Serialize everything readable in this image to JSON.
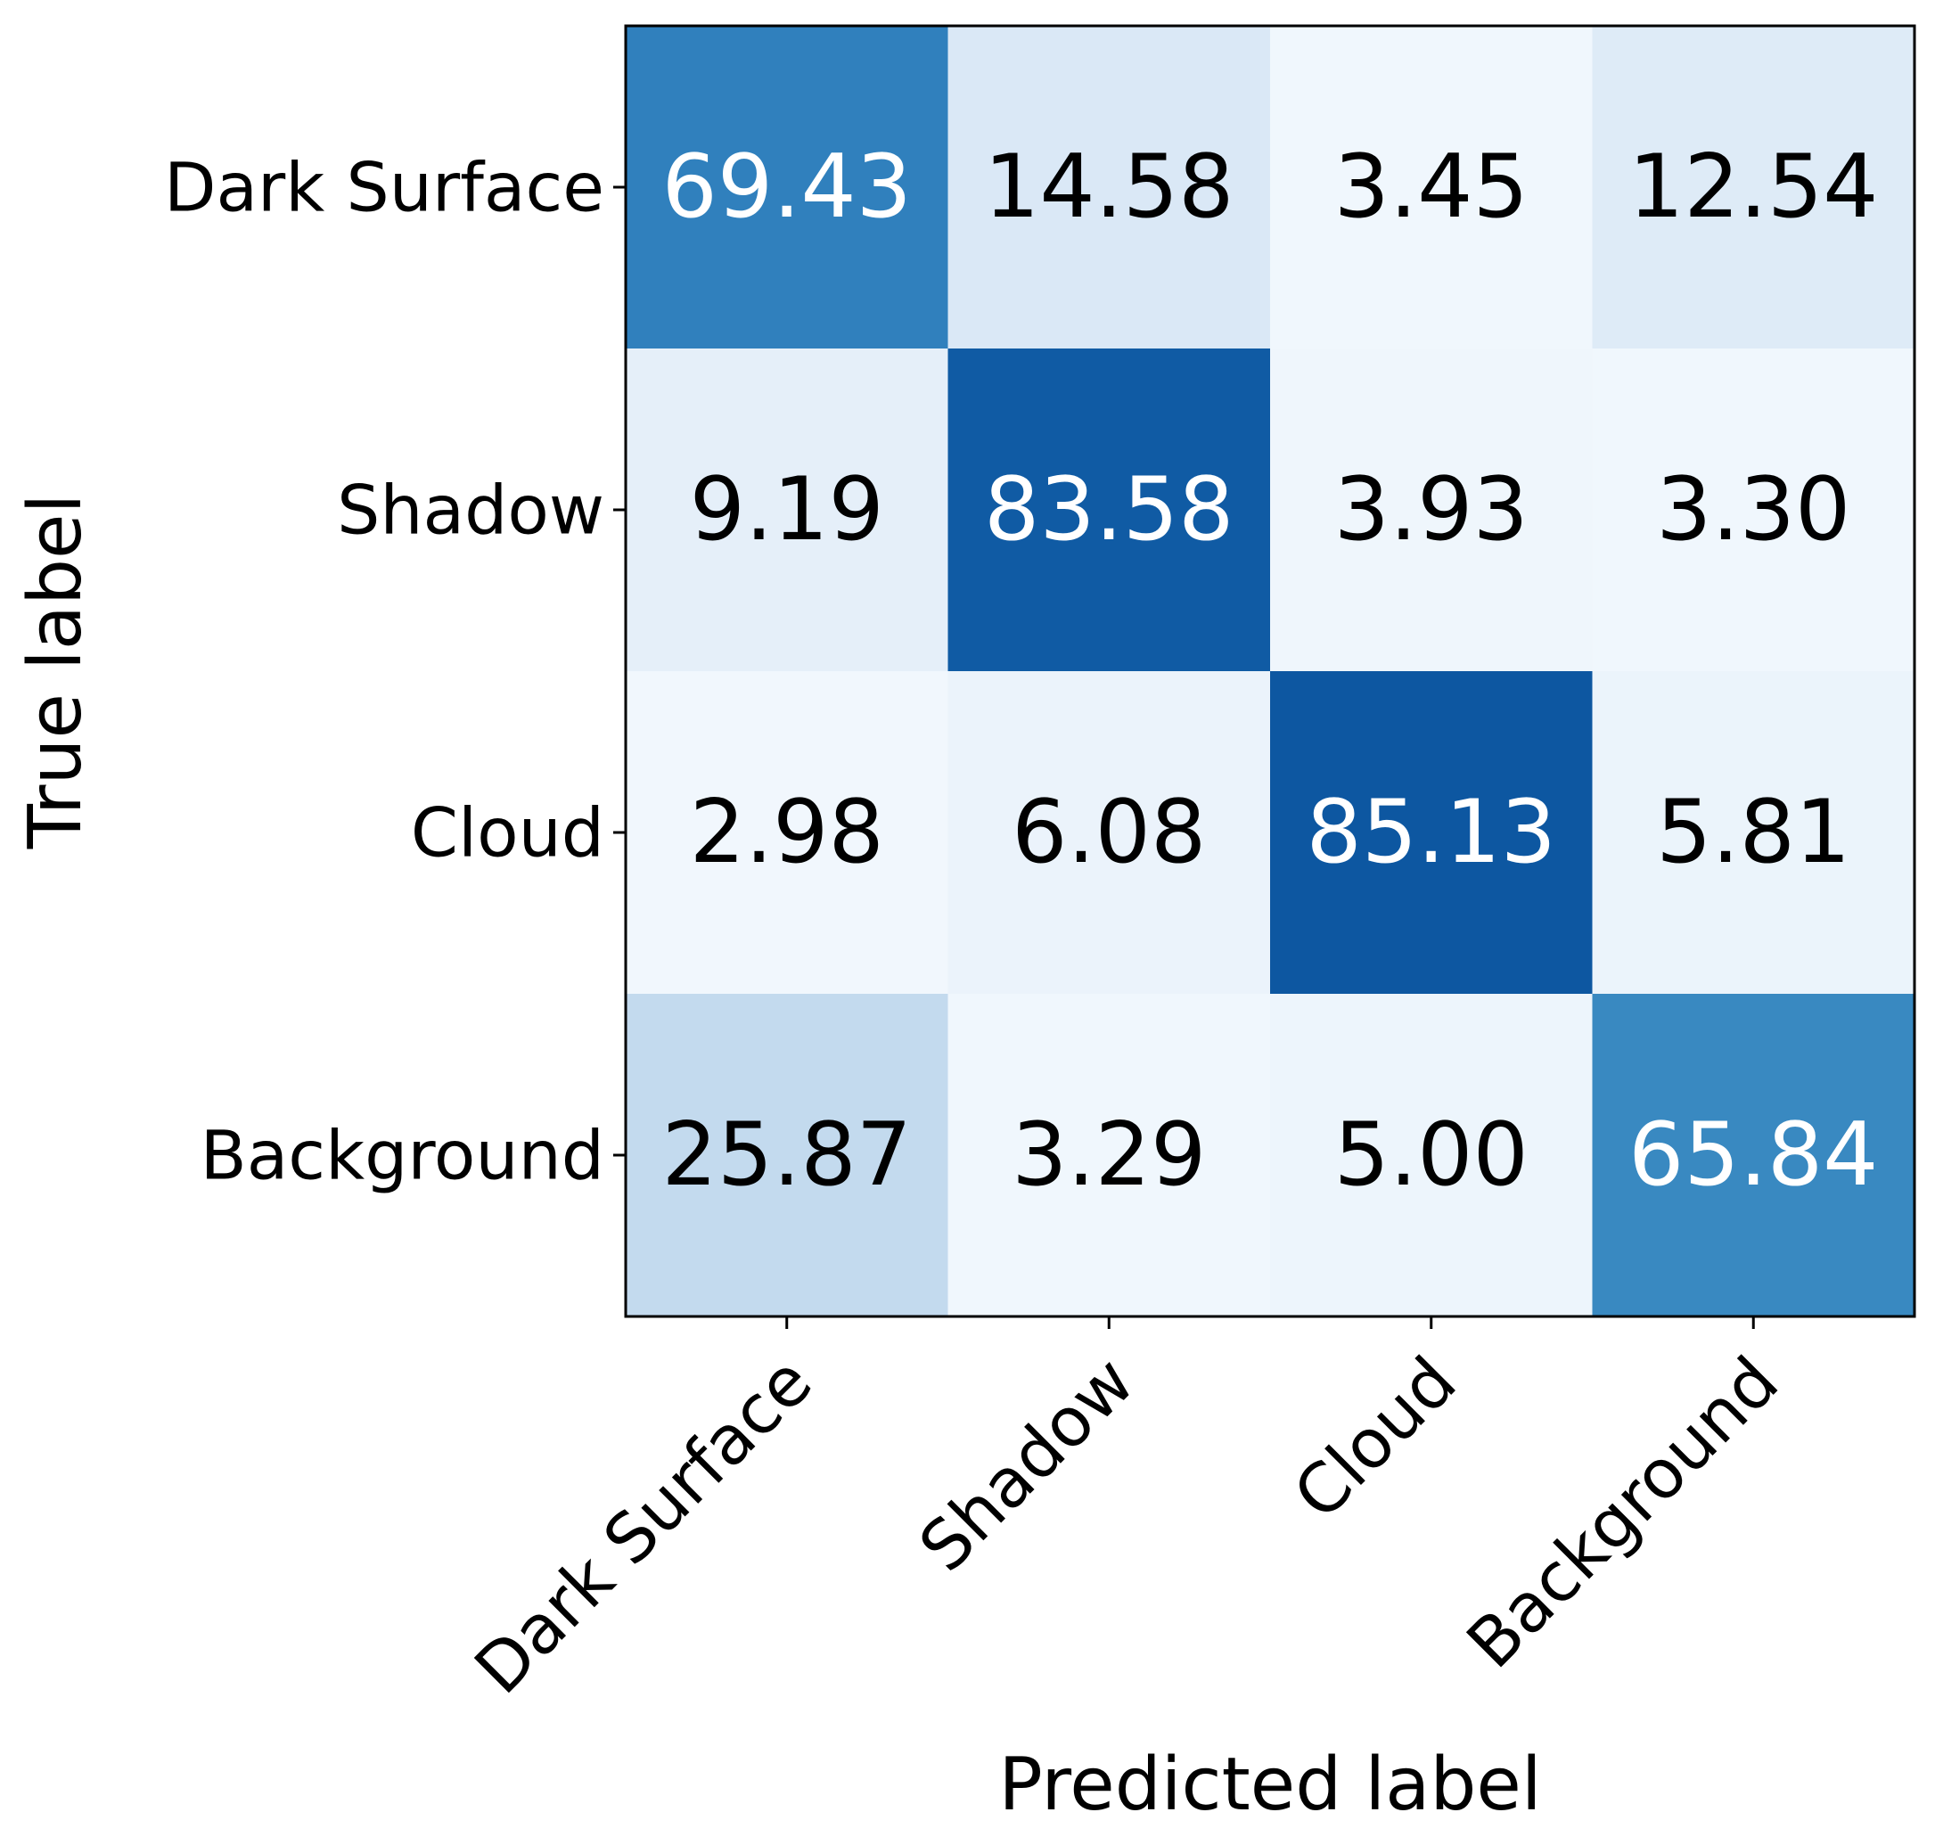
{
  "chart_data": {
    "type": "heatmap",
    "title": "",
    "xlabel": "Predicted label",
    "ylabel": "True label",
    "x_categories": [
      "Dark Surface",
      "Shadow",
      "Cloud",
      "Background"
    ],
    "y_categories": [
      "Dark Surface",
      "Shadow",
      "Cloud",
      "Background"
    ],
    "values": [
      [
        "69.43",
        "14.58",
        "3.45",
        "12.54"
      ],
      [
        "9.19",
        "83.58",
        "3.93",
        "3.30"
      ],
      [
        "2.98",
        "6.08",
        "85.13",
        "5.81"
      ],
      [
        "25.87",
        "3.29",
        "5.00",
        "65.84"
      ]
    ],
    "value_range": [
      0,
      100
    ],
    "colormap": "Blues",
    "colormap_stops": [
      "#f7fbff",
      "#deebf7",
      "#c6dbef",
      "#9ecae1",
      "#6baed6",
      "#4292c6",
      "#2171b5",
      "#08519c",
      "#08306b"
    ],
    "grid": false,
    "colorbar": false
  }
}
